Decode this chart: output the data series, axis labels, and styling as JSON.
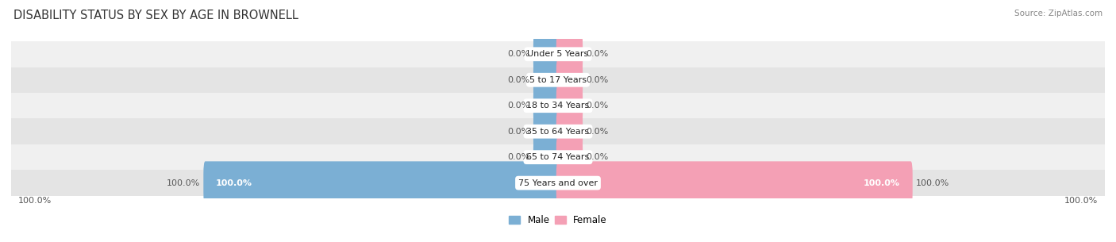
{
  "title": "DISABILITY STATUS BY SEX BY AGE IN BROWNELL",
  "source": "Source: ZipAtlas.com",
  "categories": [
    "Under 5 Years",
    "5 to 17 Years",
    "18 to 34 Years",
    "35 to 64 Years",
    "65 to 74 Years",
    "75 Years and over"
  ],
  "male_values": [
    0.0,
    0.0,
    0.0,
    0.0,
    0.0,
    100.0
  ],
  "female_values": [
    0.0,
    0.0,
    0.0,
    0.0,
    0.0,
    100.0
  ],
  "male_color": "#7bafd4",
  "female_color": "#f4a0b5",
  "row_bg_colors": [
    "#f0f0f0",
    "#e4e4e4"
  ],
  "max_value": 100.0,
  "title_fontsize": 10.5,
  "label_fontsize": 8,
  "category_fontsize": 8,
  "legend_fontsize": 8.5
}
